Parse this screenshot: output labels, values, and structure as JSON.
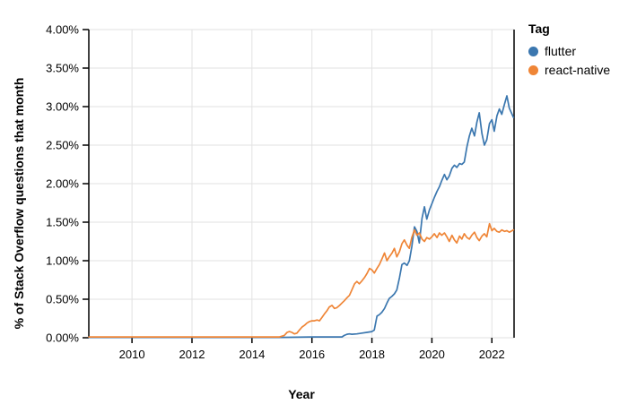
{
  "page": {
    "background": "#ffffff"
  },
  "legend": {
    "title": "Tag",
    "items": [
      {
        "label": "flutter",
        "color": "#3b77af"
      },
      {
        "label": "react-native",
        "color": "#ef8536"
      }
    ]
  },
  "chart_data": {
    "type": "line",
    "title": "",
    "xlabel": "Year",
    "ylabel": "% of Stack Overflow questions that month",
    "xlim": [
      2008.56,
      2022.74
    ],
    "ylim": [
      0,
      4.0
    ],
    "grid": true,
    "legend_position": "top-right",
    "grid_color": "#e2e2e2",
    "axis_color": "#000000",
    "x_ticks": [
      2010,
      2012,
      2014,
      2016,
      2018,
      2020,
      2022
    ],
    "y_tick_values": [
      0,
      0.5,
      1.0,
      1.5,
      2.0,
      2.5,
      3.0,
      3.5,
      4.0
    ],
    "y_tick_labels": [
      "0.00%",
      "0.50%",
      "1.00%",
      "1.50%",
      "2.00%",
      "2.50%",
      "3.00%",
      "3.50%",
      "4.00%"
    ],
    "series": [
      {
        "name": "flutter",
        "color": "#3b77af",
        "points": [
          [
            2008.56,
            0.005
          ],
          [
            2010,
            0.005
          ],
          [
            2012,
            0.005
          ],
          [
            2014,
            0.005
          ],
          [
            2015,
            0.005
          ],
          [
            2016,
            0.01
          ],
          [
            2016.5,
            0.01
          ],
          [
            2017.0,
            0.01
          ],
          [
            2017.08,
            0.03
          ],
          [
            2017.17,
            0.045
          ],
          [
            2017.25,
            0.05
          ],
          [
            2017.33,
            0.045
          ],
          [
            2017.5,
            0.05
          ],
          [
            2017.67,
            0.06
          ],
          [
            2017.83,
            0.07
          ],
          [
            2018.0,
            0.08
          ],
          [
            2018.08,
            0.1
          ],
          [
            2018.17,
            0.28
          ],
          [
            2018.25,
            0.3
          ],
          [
            2018.33,
            0.33
          ],
          [
            2018.42,
            0.38
          ],
          [
            2018.5,
            0.45
          ],
          [
            2018.58,
            0.51
          ],
          [
            2018.67,
            0.54
          ],
          [
            2018.75,
            0.57
          ],
          [
            2018.83,
            0.62
          ],
          [
            2018.92,
            0.78
          ],
          [
            2019.0,
            0.95
          ],
          [
            2019.08,
            0.97
          ],
          [
            2019.17,
            0.94
          ],
          [
            2019.25,
            1.0
          ],
          [
            2019.33,
            1.18
          ],
          [
            2019.42,
            1.44
          ],
          [
            2019.5,
            1.38
          ],
          [
            2019.58,
            1.23
          ],
          [
            2019.67,
            1.55
          ],
          [
            2019.75,
            1.7
          ],
          [
            2019.83,
            1.54
          ],
          [
            2019.92,
            1.66
          ],
          [
            2020.0,
            1.74
          ],
          [
            2020.08,
            1.82
          ],
          [
            2020.17,
            1.9
          ],
          [
            2020.25,
            1.96
          ],
          [
            2020.33,
            2.04
          ],
          [
            2020.42,
            2.12
          ],
          [
            2020.5,
            2.05
          ],
          [
            2020.58,
            2.1
          ],
          [
            2020.67,
            2.2
          ],
          [
            2020.75,
            2.24
          ],
          [
            2020.83,
            2.21
          ],
          [
            2020.92,
            2.26
          ],
          [
            2021.0,
            2.25
          ],
          [
            2021.08,
            2.28
          ],
          [
            2021.17,
            2.48
          ],
          [
            2021.25,
            2.62
          ],
          [
            2021.33,
            2.72
          ],
          [
            2021.42,
            2.62
          ],
          [
            2021.5,
            2.8
          ],
          [
            2021.58,
            2.92
          ],
          [
            2021.67,
            2.65
          ],
          [
            2021.75,
            2.5
          ],
          [
            2021.83,
            2.57
          ],
          [
            2021.92,
            2.78
          ],
          [
            2022.0,
            2.83
          ],
          [
            2022.08,
            2.68
          ],
          [
            2022.17,
            2.88
          ],
          [
            2022.25,
            2.97
          ],
          [
            2022.33,
            2.9
          ],
          [
            2022.42,
            3.03
          ],
          [
            2022.5,
            3.14
          ],
          [
            2022.58,
            2.98
          ],
          [
            2022.72,
            2.86
          ]
        ]
      },
      {
        "name": "react-native",
        "color": "#ef8536",
        "points": [
          [
            2008.56,
            0.01
          ],
          [
            2010,
            0.01
          ],
          [
            2012,
            0.01
          ],
          [
            2014,
            0.01
          ],
          [
            2014.92,
            0.01
          ],
          [
            2015.08,
            0.03
          ],
          [
            2015.17,
            0.07
          ],
          [
            2015.25,
            0.08
          ],
          [
            2015.33,
            0.07
          ],
          [
            2015.42,
            0.05
          ],
          [
            2015.5,
            0.06
          ],
          [
            2015.58,
            0.1
          ],
          [
            2015.67,
            0.14
          ],
          [
            2015.75,
            0.16
          ],
          [
            2015.83,
            0.19
          ],
          [
            2015.92,
            0.21
          ],
          [
            2016.0,
            0.22
          ],
          [
            2016.08,
            0.22
          ],
          [
            2016.17,
            0.23
          ],
          [
            2016.25,
            0.22
          ],
          [
            2016.33,
            0.26
          ],
          [
            2016.42,
            0.31
          ],
          [
            2016.5,
            0.35
          ],
          [
            2016.58,
            0.4
          ],
          [
            2016.67,
            0.42
          ],
          [
            2016.75,
            0.38
          ],
          [
            2016.83,
            0.39
          ],
          [
            2016.92,
            0.42
          ],
          [
            2017.0,
            0.45
          ],
          [
            2017.08,
            0.48
          ],
          [
            2017.17,
            0.52
          ],
          [
            2017.25,
            0.55
          ],
          [
            2017.33,
            0.62
          ],
          [
            2017.42,
            0.7
          ],
          [
            2017.5,
            0.73
          ],
          [
            2017.58,
            0.7
          ],
          [
            2017.67,
            0.74
          ],
          [
            2017.75,
            0.78
          ],
          [
            2017.83,
            0.83
          ],
          [
            2017.92,
            0.9
          ],
          [
            2018.0,
            0.88
          ],
          [
            2018.08,
            0.84
          ],
          [
            2018.17,
            0.9
          ],
          [
            2018.25,
            0.95
          ],
          [
            2018.33,
            1.02
          ],
          [
            2018.42,
            1.1
          ],
          [
            2018.5,
            1.0
          ],
          [
            2018.58,
            1.05
          ],
          [
            2018.67,
            1.1
          ],
          [
            2018.75,
            1.16
          ],
          [
            2018.83,
            1.05
          ],
          [
            2018.92,
            1.12
          ],
          [
            2019.0,
            1.22
          ],
          [
            2019.08,
            1.27
          ],
          [
            2019.17,
            1.2
          ],
          [
            2019.25,
            1.16
          ],
          [
            2019.33,
            1.3
          ],
          [
            2019.42,
            1.4
          ],
          [
            2019.5,
            1.33
          ],
          [
            2019.58,
            1.36
          ],
          [
            2019.67,
            1.28
          ],
          [
            2019.75,
            1.25
          ],
          [
            2019.83,
            1.3
          ],
          [
            2019.92,
            1.28
          ],
          [
            2020.0,
            1.31
          ],
          [
            2020.08,
            1.35
          ],
          [
            2020.17,
            1.3
          ],
          [
            2020.25,
            1.36
          ],
          [
            2020.33,
            1.33
          ],
          [
            2020.42,
            1.36
          ],
          [
            2020.5,
            1.31
          ],
          [
            2020.58,
            1.25
          ],
          [
            2020.67,
            1.33
          ],
          [
            2020.75,
            1.27
          ],
          [
            2020.83,
            1.23
          ],
          [
            2020.92,
            1.32
          ],
          [
            2021.0,
            1.28
          ],
          [
            2021.08,
            1.35
          ],
          [
            2021.17,
            1.3
          ],
          [
            2021.25,
            1.28
          ],
          [
            2021.33,
            1.33
          ],
          [
            2021.42,
            1.37
          ],
          [
            2021.5,
            1.3
          ],
          [
            2021.58,
            1.26
          ],
          [
            2021.67,
            1.32
          ],
          [
            2021.75,
            1.35
          ],
          [
            2021.83,
            1.31
          ],
          [
            2021.92,
            1.48
          ],
          [
            2022.0,
            1.39
          ],
          [
            2022.08,
            1.42
          ],
          [
            2022.17,
            1.38
          ],
          [
            2022.25,
            1.37
          ],
          [
            2022.33,
            1.4
          ],
          [
            2022.42,
            1.38
          ],
          [
            2022.5,
            1.39
          ],
          [
            2022.58,
            1.37
          ],
          [
            2022.72,
            1.4
          ]
        ]
      }
    ]
  }
}
